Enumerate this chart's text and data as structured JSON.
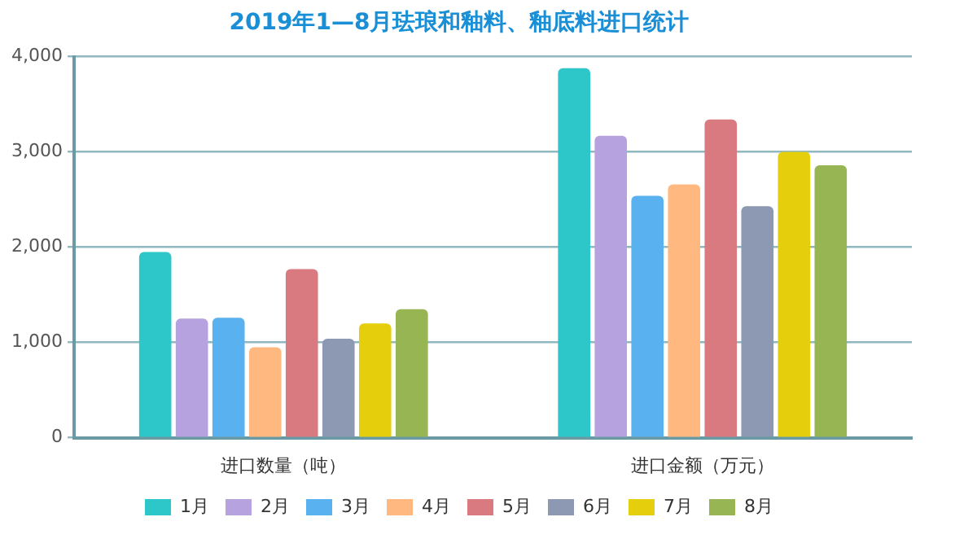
{
  "chart_data": {
    "type": "bar",
    "title": "2019年1—8月珐琅和釉料、釉底料进口统计",
    "categories": [
      "进口数量（吨）",
      "进口金额（万元）"
    ],
    "series": [
      {
        "name": "1月",
        "color": "#2ec7c9",
        "values": [
          1950,
          3880
        ]
      },
      {
        "name": "2月",
        "color": "#b6a2de",
        "values": [
          1250,
          3170
        ]
      },
      {
        "name": "3月",
        "color": "#5ab1ef",
        "values": [
          1260,
          2540
        ]
      },
      {
        "name": "4月",
        "color": "#ffb980",
        "values": [
          950,
          2660
        ]
      },
      {
        "name": "5月",
        "color": "#d87a80",
        "values": [
          1770,
          3340
        ]
      },
      {
        "name": "6月",
        "color": "#8d98b3",
        "values": [
          1040,
          2430
        ]
      },
      {
        "name": "7月",
        "color": "#e5cf0d",
        "values": [
          1200,
          3000
        ]
      },
      {
        "name": "8月",
        "color": "#97b552",
        "values": [
          1350,
          2860
        ]
      }
    ],
    "ylim": [
      0,
      4000
    ],
    "yticks": [
      0,
      {
        "value": 1000,
        "label": "1,000"
      },
      {
        "value": 2000,
        "label": "2,000"
      },
      {
        "value": 3000,
        "label": "3,000"
      },
      {
        "value": 4000,
        "label": "4,000"
      }
    ],
    "grid": "y",
    "legend": "bottom"
  }
}
